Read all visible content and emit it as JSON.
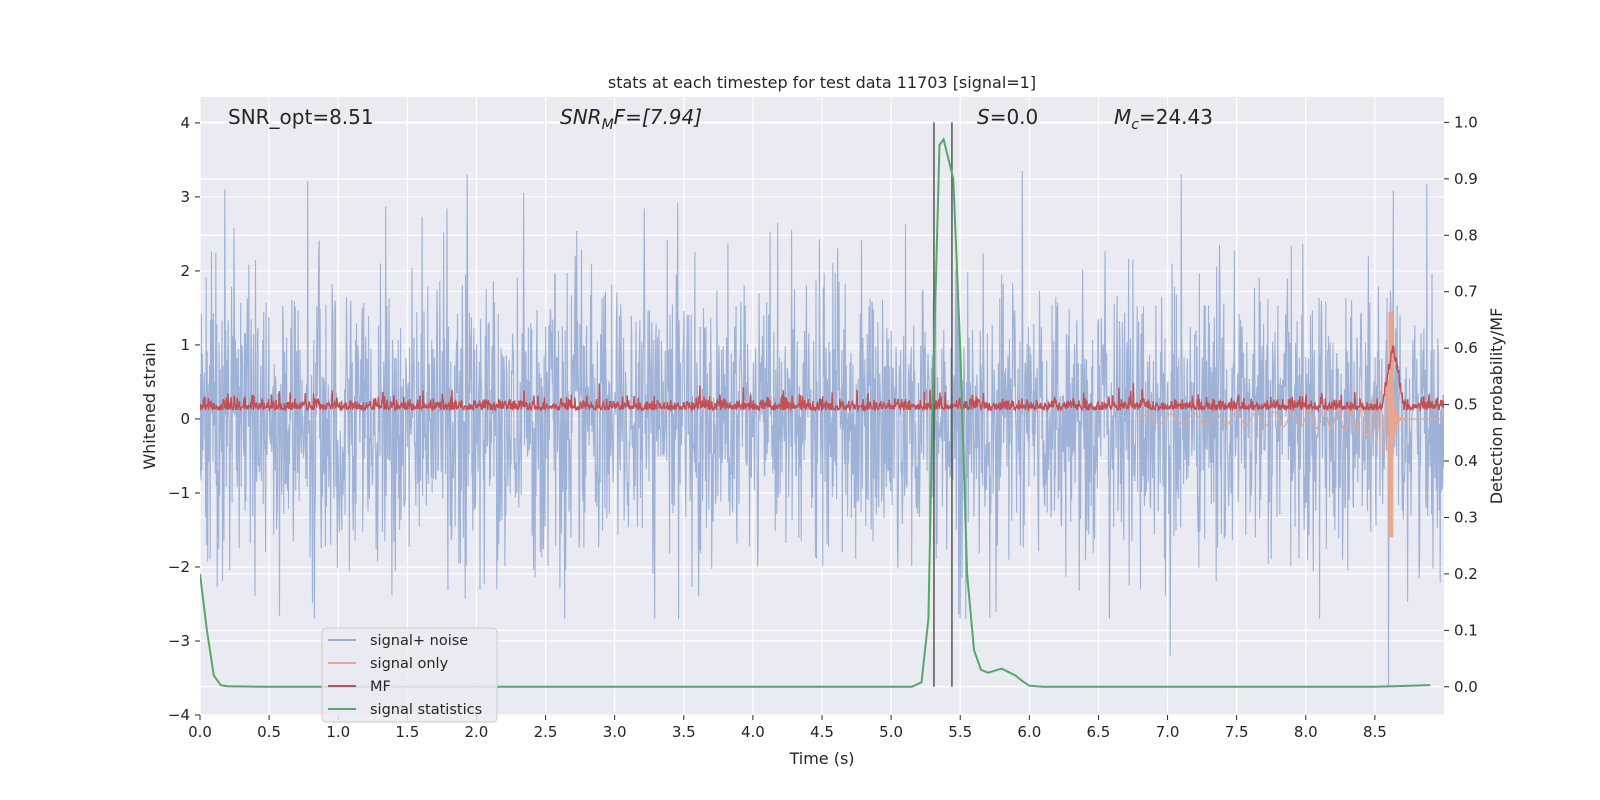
{
  "chart_data": {
    "type": "line",
    "title": "stats at each timestep for test data 11703 [signal=1]",
    "xlabel": "Time (s)",
    "ylabel": "Whitened strain",
    "ylabel_right": "Detection probability/MF",
    "xlim": [
      0.0,
      9.0
    ],
    "ylim": [
      -4.0,
      4.35
    ],
    "ylim_right": [
      -0.05,
      1.045
    ],
    "x_ticks": [
      "0.0",
      "0.5",
      "1.0",
      "1.5",
      "2.0",
      "2.5",
      "3.0",
      "3.5",
      "4.0",
      "4.5",
      "5.0",
      "5.5",
      "6.0",
      "6.5",
      "7.0",
      "7.5",
      "8.0",
      "8.5"
    ],
    "y_ticks": [
      "−4",
      "−3",
      "−2",
      "−1",
      "0",
      "1",
      "2",
      "3",
      "4"
    ],
    "y_right_ticks": [
      "0.0",
      "0.1",
      "0.2",
      "0.3",
      "0.4",
      "0.5",
      "0.6",
      "0.7",
      "0.8",
      "0.9",
      "1.0"
    ],
    "grid": true,
    "legend_position": "lower-left",
    "annotations": {
      "snr_opt": "SNR_opt=8.51",
      "snr_mf_main": "SNR",
      "snr_mf_sub": "M",
      "snr_mf_rest": "F=[7.94]",
      "s_main": "S",
      "s_rest": "=0.0",
      "mc_main": "M",
      "mc_sub": "c",
      "mc_rest": "=24.43"
    },
    "vertical_lines_x": [
      5.31,
      5.44
    ],
    "series": [
      {
        "name": "signal+ noise",
        "color": "#9aaed4",
        "axis": "left",
        "description_values": "whitened noise, approx uniform amplitude between -2.7 and 3.3 across 0-9 s",
        "amplitude_range": [
          -2.7,
          3.3
        ],
        "notable_peaks": [
          {
            "x": 0.18,
            "y": 3.1
          },
          {
            "x": 5.95,
            "y": 3.35
          },
          {
            "x": 7.02,
            "y": -3.2
          },
          {
            "x": 8.6,
            "y": -3.6
          }
        ]
      },
      {
        "name": "signal only",
        "color": "#e9a48b",
        "axis": "left",
        "description_values": "chirp growing from ~7.0 s, merger at ~8.63 s",
        "merger_x": 8.63,
        "peak_positive": 1.45,
        "peak_negative": -1.6
      },
      {
        "name": "MF",
        "color": "#c44e52",
        "axis": "left",
        "description_values": "matched filter output noise band between ~0 and 0.3, spike to ~1.0 at 8.63 s",
        "band": [
          0.0,
          0.3
        ],
        "spike": {
          "x": 8.63,
          "y": 1.0
        }
      },
      {
        "name": "signal statistics",
        "color": "#55a868",
        "axis": "right",
        "x": [
          0.0,
          0.05,
          0.1,
          0.15,
          0.2,
          0.5,
          1.0,
          2.0,
          3.0,
          4.0,
          5.0,
          5.15,
          5.22,
          5.27,
          5.3,
          5.35,
          5.38,
          5.45,
          5.5,
          5.55,
          5.6,
          5.65,
          5.7,
          5.8,
          5.9,
          5.95,
          6.0,
          6.1,
          6.5,
          7.0,
          8.0,
          8.5,
          8.9
        ],
        "values": [
          0.2,
          0.1,
          0.02,
          0.003,
          0.001,
          0.0,
          0.0,
          0.0,
          0.0,
          0.0,
          0.0,
          0.0,
          0.008,
          0.12,
          0.5,
          0.96,
          0.97,
          0.9,
          0.6,
          0.2,
          0.065,
          0.03,
          0.025,
          0.032,
          0.02,
          0.01,
          0.002,
          0.0,
          0.0,
          0.0,
          0.0,
          0.0,
          0.003
        ]
      }
    ]
  }
}
